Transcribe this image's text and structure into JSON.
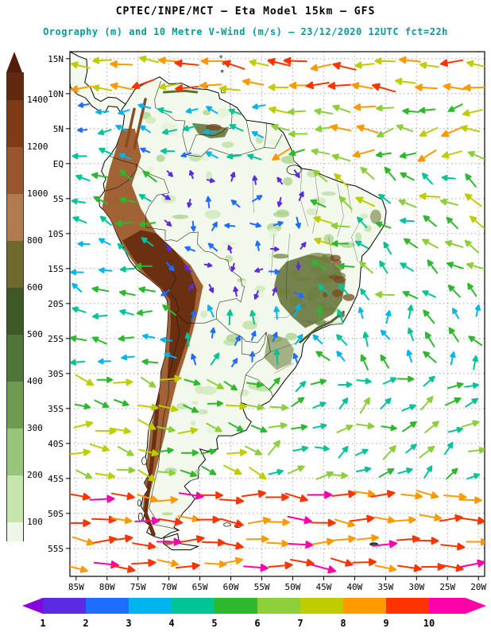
{
  "header": {
    "title": "CPTEC/INPE/MCT —  Eta Model 15km — GFS",
    "subtitle": "Orography (m) and 10 Metre V-Wind (m/s) — 23/12/2020 12UTC fct=22h",
    "title_color": "#000000",
    "subtitle_color": "#009c9c"
  },
  "axes": {
    "lat_labels": [
      "15N",
      "10N",
      "5N",
      "EQ",
      "5S",
      "10S",
      "15S",
      "20S",
      "25S",
      "30S",
      "35S",
      "40S",
      "45S",
      "50S",
      "55S"
    ],
    "lat_values": [
      15,
      10,
      5,
      0,
      -5,
      -10,
      -15,
      -20,
      -25,
      -30,
      -35,
      -40,
      -45,
      -50,
      -55
    ],
    "lon_labels": [
      "85W",
      "80W",
      "75W",
      "70W",
      "65W",
      "60W",
      "55W",
      "50W",
      "45W",
      "40W",
      "35W",
      "30W",
      "25W",
      "20W"
    ],
    "lon_values": [
      -85,
      -80,
      -75,
      -70,
      -65,
      -60,
      -55,
      -50,
      -45,
      -40,
      -35,
      -30,
      -25,
      -20
    ]
  },
  "orography_scale": {
    "units": "m",
    "boundary_labels": [
      "1400",
      "1200",
      "1000",
      "800",
      "600",
      "500",
      "400",
      "300",
      "200",
      "100"
    ],
    "segment_colors": [
      "#612a10",
      "#7d3b18",
      "#97562c",
      "#b07c4e",
      "#6e6a2e",
      "#3f5828",
      "#4f7538",
      "#6e9b51",
      "#97c57c",
      "#c6e4ae",
      "#eef7e6"
    ],
    "arrow_color": "#531d0a"
  },
  "wind_scale": {
    "units": "m/s",
    "boundary_labels": [
      "1",
      "2",
      "3",
      "4",
      "5",
      "6",
      "7",
      "8",
      "9",
      "10"
    ],
    "segment_colors": [
      "#8800dd",
      "#5a2be0",
      "#1f6dff",
      "#00b4f0",
      "#00c496",
      "#2db82d",
      "#8ccf3a",
      "#bfcc00",
      "#ff9900",
      "#ff3300",
      "#ff00aa"
    ]
  },
  "wind_field": {
    "grid": {
      "cols": 19,
      "rows": 23
    },
    "arrow": {
      "min_len": 9,
      "max_len": 30
    },
    "regions": [
      {
        "name": "north-caribbean-belt",
        "x": [
          0,
          1
        ],
        "y": [
          0,
          0.09
        ],
        "dir_deg": [
          160,
          200
        ],
        "speed_ms": [
          7,
          10
        ]
      },
      {
        "name": "tropical-north-atlantic-trades",
        "x": [
          0.45,
          1
        ],
        "y": [
          0.09,
          0.21
        ],
        "dir_deg": [
          145,
          205
        ],
        "speed_ms": [
          5,
          9
        ]
      },
      {
        "name": "northern-south-america",
        "x": [
          0,
          0.45
        ],
        "y": [
          0.09,
          0.22
        ],
        "dir_deg": [
          150,
          215
        ],
        "speed_ms": [
          2,
          5
        ]
      },
      {
        "name": "south-atlantic-trades",
        "x": [
          0.6,
          1
        ],
        "y": [
          0.21,
          0.46
        ],
        "dir_deg": [
          180,
          240
        ],
        "speed_ms": [
          4,
          8
        ]
      },
      {
        "name": "peru-coast",
        "x": [
          0,
          0.2
        ],
        "y": [
          0.22,
          0.46
        ],
        "dir_deg": [
          165,
          225
        ],
        "speed_ms": [
          3,
          6
        ]
      },
      {
        "name": "amazonia-weak-winds",
        "x": [
          0.2,
          0.6
        ],
        "y": [
          0.22,
          0.46
        ],
        "dir_deg": [
          0,
          360
        ],
        "speed_ms": [
          1,
          3
        ]
      },
      {
        "name": "subtropical-se-pacific",
        "x": [
          0,
          0.28
        ],
        "y": [
          0.46,
          0.63
        ],
        "dir_deg": [
          165,
          225
        ],
        "speed_ms": [
          3,
          6
        ]
      },
      {
        "name": "southern-brazil-northerlies",
        "x": [
          0.28,
          0.58
        ],
        "y": [
          0.46,
          0.63
        ],
        "dir_deg": [
          240,
          310
        ],
        "speed_ms": [
          2,
          5
        ]
      },
      {
        "name": "subtropical-south-atlantic",
        "x": [
          0.58,
          1
        ],
        "y": [
          0.46,
          0.63
        ],
        "dir_deg": [
          200,
          285
        ],
        "speed_ms": [
          3,
          6
        ]
      },
      {
        "name": "patagonia-westerlies",
        "x": [
          0,
          0.5
        ],
        "y": [
          0.63,
          0.84
        ],
        "dir_deg": [
          345,
          395
        ],
        "speed_ms": [
          5,
          8
        ]
      },
      {
        "name": "south-atlantic-westerlies",
        "x": [
          0.5,
          1
        ],
        "y": [
          0.63,
          0.84
        ],
        "dir_deg": [
          300,
          370
        ],
        "speed_ms": [
          4,
          7
        ]
      },
      {
        "name": "southern-ocean-jet",
        "x": [
          0,
          1
        ],
        "y": [
          0.84,
          1
        ],
        "dir_deg": [
          348,
          378
        ],
        "speed_ms": [
          8,
          10.4
        ]
      }
    ],
    "default_region": {
      "dir_deg": [
        0,
        360
      ],
      "speed_ms": [
        2,
        4
      ]
    }
  },
  "chart_data": {
    "type": "heatmap",
    "title": "CPTEC/INPE/MCT — Eta Model 15km — GFS",
    "subtitle": "Orography (m) and 10 Metre V-Wind (m/s) — 23/12/2020 12UTC fct=22h",
    "region": "South America and adjacent oceans",
    "x_axis": {
      "label": "longitude",
      "range": [
        "86W",
        "19W"
      ],
      "ticks": [
        "85W",
        "80W",
        "75W",
        "70W",
        "65W",
        "60W",
        "55W",
        "50W",
        "45W",
        "40W",
        "35W",
        "30W",
        "25W",
        "20W"
      ]
    },
    "y_axis": {
      "label": "latitude",
      "range": [
        "16N",
        "59S"
      ],
      "ticks": [
        "15N",
        "10N",
        "5N",
        "EQ",
        "5S",
        "10S",
        "15S",
        "20S",
        "25S",
        "30S",
        "35S",
        "40S",
        "45S",
        "50S",
        "55S"
      ]
    },
    "grid": "5-degree dashed graticule",
    "shaded_layer": {
      "name": "Orography",
      "units": "m",
      "levels": [
        100,
        200,
        300,
        400,
        500,
        600,
        800,
        1000,
        1200,
        1400
      ],
      "palette_note": "white -> green -> olive -> brown, maroon above 1400 m (Andes, Brazilian and Guiana highlands shaded brown/olive)"
    },
    "vector_layer": {
      "name": "10 metre wind vectors",
      "units": "m/s",
      "speed_levels": [
        1,
        2,
        3,
        4,
        5,
        6,
        7,
        8,
        9,
        10
      ],
      "palette_note": "purple (1) -> blue -> cyan -> green -> yellow-green -> orange -> red -> magenta (10+)",
      "patterns": [
        "strong red/magenta westward easterlies north of the equator and over the Caribbean",
        "weak purple/blue winds over Amazonia and central Brazil",
        "southeast trade winds (teal/orange) over the tropical South Atlantic",
        "green/cyan winds along the Peru-Chile coast",
        "strong magenta/red eastward westerlies south of about 47S"
      ]
    }
  }
}
